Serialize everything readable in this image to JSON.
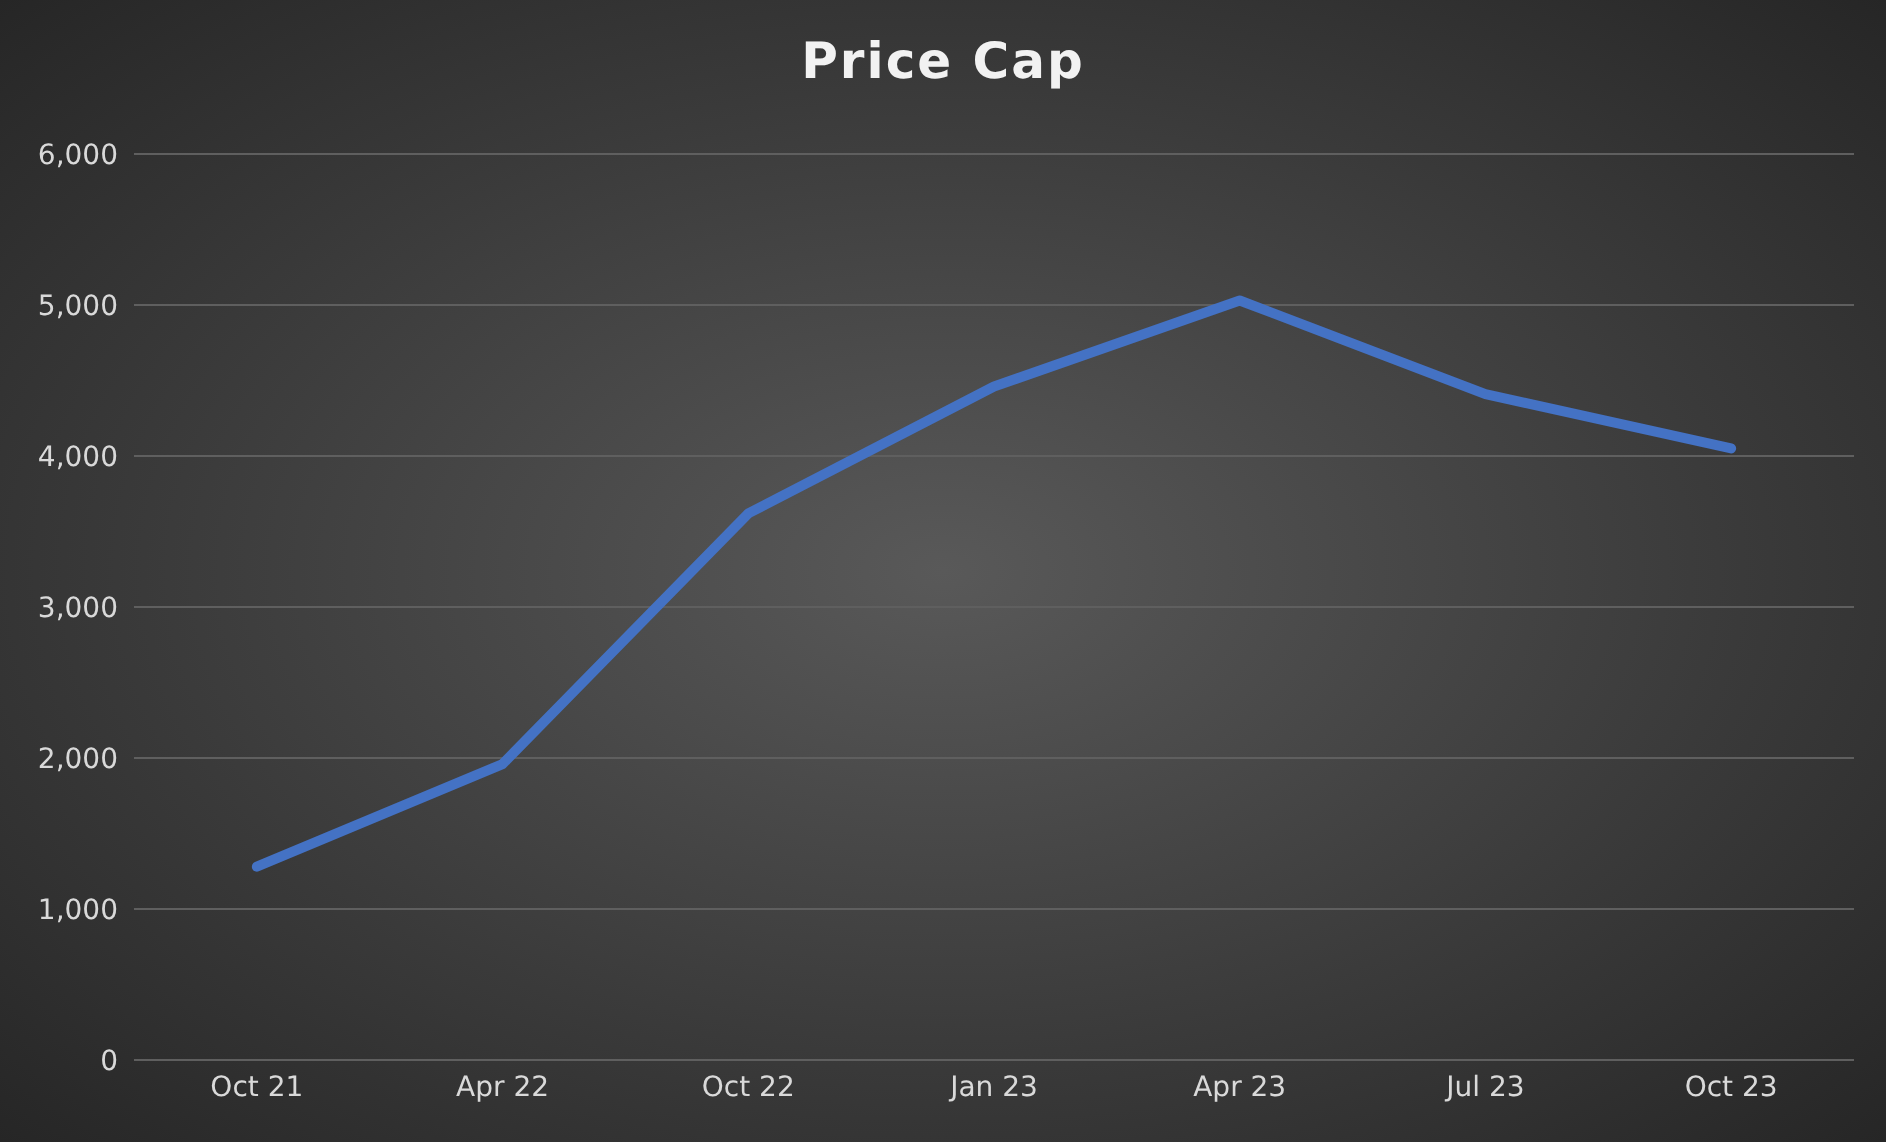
{
  "chart_data": {
    "type": "line",
    "title": "Price Cap",
    "categories": [
      "Oct 21",
      "Apr 22",
      "Oct 22",
      "Jan 23",
      "Apr 23",
      "Jul 23",
      "Oct 23"
    ],
    "series": [
      {
        "color": "#4472c4",
        "values": [
          1280,
          1960,
          3620,
          4460,
          5030,
          4410,
          4050
        ]
      }
    ],
    "ylim": [
      0,
      6000
    ],
    "yticks": [
      0,
      {
        "value": 1000,
        "label": "1,000"
      },
      {
        "value": 2000,
        "label": "2,000"
      },
      {
        "value": 3000,
        "label": "3,000"
      },
      {
        "value": 4000,
        "label": "4,000"
      },
      {
        "value": 5000,
        "label": "5,000"
      },
      {
        "value": 6000,
        "label": "6,000"
      }
    ],
    "grid": "y",
    "legend": false,
    "marker": "none",
    "line_style": "solid"
  }
}
